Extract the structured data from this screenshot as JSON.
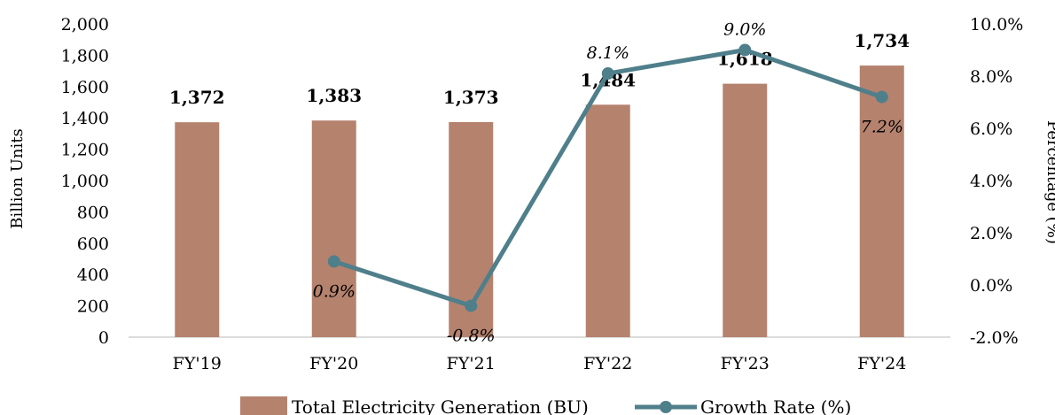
{
  "chart_data": {
    "type": "bar",
    "categories": [
      "FY'19",
      "FY'20",
      "FY'21",
      "FY'22",
      "FY'23",
      "FY'24"
    ],
    "series": [
      {
        "name": "Total Electricity Generation (BU)",
        "type": "bar",
        "axis": "left",
        "values": [
          1372,
          1383,
          1373,
          1484,
          1618,
          1734
        ],
        "labels": [
          "1,372",
          "1,383",
          "1,373",
          "1,484",
          "1,618",
          "1,734"
        ],
        "color": "#b5826e"
      },
      {
        "name": "Growth Rate (%)",
        "type": "line",
        "axis": "right",
        "values": [
          null,
          0.9,
          -0.8,
          8.1,
          9.0,
          7.2
        ],
        "labels": [
          "",
          "0.9%",
          "-0.8%",
          "8.1%",
          "9.0%",
          "7.2%"
        ],
        "color": "#4f7f8a"
      }
    ],
    "ylabel": "Billion Units",
    "y2label": "Percentage (%)",
    "ylim": [
      0,
      2000
    ],
    "y2lim": [
      -2.0,
      10.0
    ],
    "yticks": [
      "0",
      "200",
      "400",
      "600",
      "800",
      "1,000",
      "1,200",
      "1,400",
      "1,600",
      "1,800",
      "2,000"
    ],
    "y2ticks": [
      "-2.0%",
      "0.0%",
      "2.0%",
      "4.0%",
      "6.0%",
      "8.0%",
      "10.0%"
    ],
    "grid": false,
    "legend_position": "bottom"
  }
}
